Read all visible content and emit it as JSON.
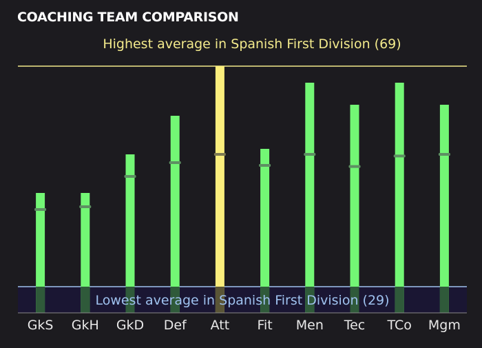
{
  "chart_data": {
    "type": "bar",
    "title": "COACHING TEAM COMPARISON",
    "categories": [
      "GkS",
      "GkH",
      "GkD",
      "Def",
      "Att",
      "Fit",
      "Men",
      "Tec",
      "TCo",
      "Mgm"
    ],
    "values": [
      46,
      46,
      53,
      60,
      69,
      54,
      66,
      62,
      66,
      62
    ],
    "league_average_markers": [
      43,
      43.5,
      49,
      51.5,
      53,
      51,
      53,
      50.8,
      52.7,
      53
    ],
    "highlighted_category": "Att",
    "ylim": [
      29,
      69
    ],
    "colors": {
      "bar": "#73f775",
      "highlight_bar": "#fbee7d",
      "average_marker": "#5e8f63",
      "high_line": "#f3ea8c",
      "low_line": "#9fc2ef",
      "low_band": "#1a1633",
      "background": "#1c1b1f"
    },
    "reference_lines": {
      "high": {
        "label": "Highest average in Spanish First Division (69)",
        "value": 69
      },
      "low": {
        "label": "Lowest average in Spanish First Division (29)",
        "value": 29
      }
    }
  }
}
